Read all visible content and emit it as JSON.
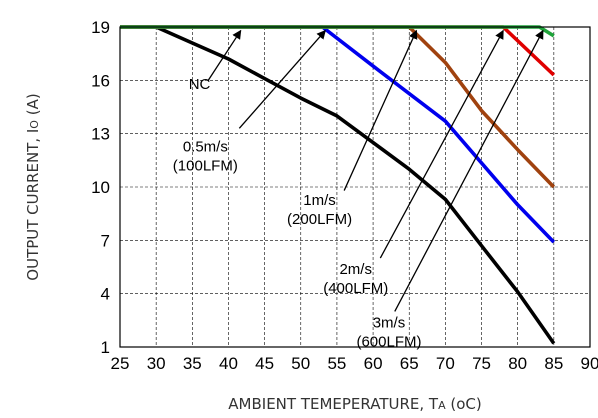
{
  "chart_data": {
    "type": "line",
    "xlabel": "AMBIENT TEMEPERATURE, T",
    "xlabel_sub": "A",
    "xlabel_unit": " (oC)",
    "ylabel": "OUTPUT CURRENT, I",
    "ylabel_sub": "O",
    "ylabel_unit": " (A)",
    "xlim": [
      25,
      90
    ],
    "ylim": [
      1,
      19
    ],
    "xticks": [
      25,
      30,
      35,
      40,
      45,
      50,
      55,
      60,
      65,
      70,
      75,
      80,
      85,
      90
    ],
    "yticks": [
      1,
      4,
      7,
      10,
      13,
      16,
      19
    ],
    "grid": true,
    "series": [
      {
        "name": "",
        "color": "#000000",
        "points": [
          [
            25,
            19
          ],
          [
            30,
            19
          ],
          [
            35,
            18.1
          ],
          [
            40,
            17.2
          ],
          [
            45,
            16.1
          ],
          [
            50,
            15.0
          ],
          [
            55,
            14.0
          ],
          [
            60,
            12.5
          ],
          [
            65,
            11.0
          ],
          [
            70,
            9.3
          ],
          [
            75,
            6.7
          ],
          [
            80,
            4.1
          ],
          [
            85,
            1.2
          ]
        ]
      },
      {
        "name": "",
        "color": "#0000ee",
        "points": [
          [
            25,
            19
          ],
          [
            53,
            19
          ],
          [
            60,
            16.8
          ],
          [
            70,
            13.7
          ],
          [
            80,
            9.0
          ],
          [
            85,
            6.9
          ]
        ]
      },
      {
        "name": "",
        "color": "#a0420f",
        "points": [
          [
            25,
            19
          ],
          [
            65,
            19
          ],
          [
            70,
            17.0
          ],
          [
            75,
            14.3
          ],
          [
            80,
            12.1
          ],
          [
            85,
            10.0
          ]
        ]
      },
      {
        "name": "",
        "color": "#e00000",
        "points": [
          [
            25,
            19
          ],
          [
            78,
            19
          ],
          [
            85,
            16.3
          ]
        ]
      },
      {
        "name": "",
        "color": "#1fa33a",
        "points": [
          [
            25,
            19
          ],
          [
            83,
            19
          ],
          [
            85,
            18.5
          ]
        ]
      }
    ],
    "annotations": [
      {
        "lines": [
          "NC"
        ],
        "x": 36.0,
        "y": 15.5,
        "anchor": "middle",
        "arrow_from": [
          37.2,
          16.0
        ],
        "arrow_to": [
          41.7,
          18.8
        ]
      },
      {
        "lines": [
          "0.5m/s",
          "(100LFM)"
        ],
        "x": 36.8,
        "y": 12.0,
        "anchor": "middle",
        "arrow_from": [
          41.5,
          13.3
        ],
        "arrow_to": [
          53.4,
          18.8
        ]
      },
      {
        "lines": [
          "1m/s",
          "(200LFM)"
        ],
        "x": 52.6,
        "y": 9.0,
        "anchor": "middle",
        "arrow_from": [
          56.0,
          9.8
        ],
        "arrow_to": [
          66.0,
          18.8
        ]
      },
      {
        "lines": [
          "2m/s",
          "(400LFM)"
        ],
        "x": 57.6,
        "y": 5.1,
        "anchor": "middle",
        "arrow_from": [
          61.0,
          6.0
        ],
        "arrow_to": [
          78.0,
          18.8
        ]
      },
      {
        "lines": [
          "3m/s",
          "(600LFM)"
        ],
        "x": 62.2,
        "y": 2.1,
        "anchor": "middle",
        "arrow_from": [
          63.0,
          3.0
        ],
        "arrow_to": [
          83.5,
          18.8
        ]
      }
    ]
  }
}
